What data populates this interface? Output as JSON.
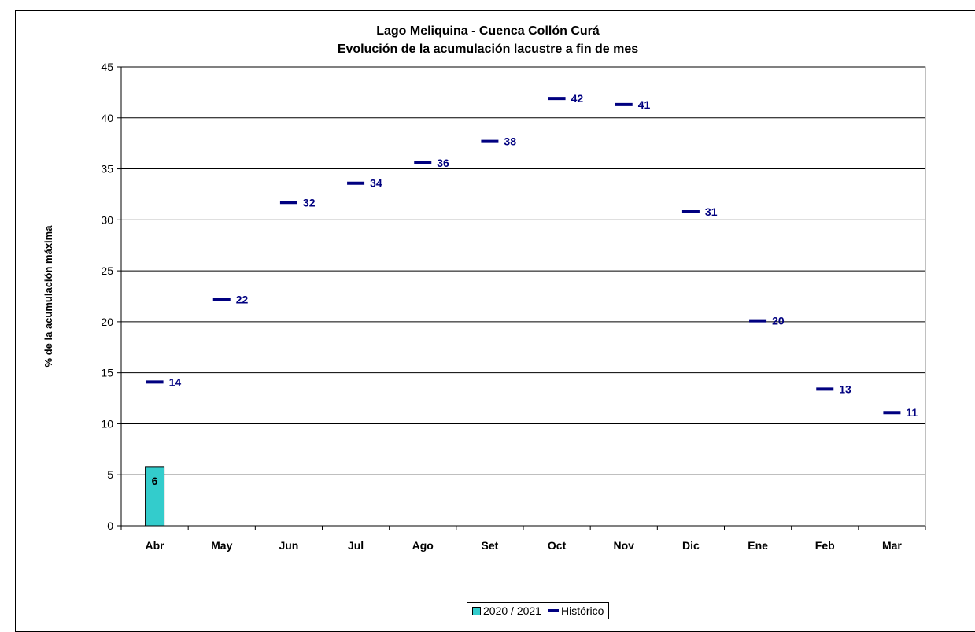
{
  "colors": {
    "bar": "#33CCCC",
    "historico": "#000080",
    "grid": "#000000"
  },
  "chart_data": {
    "type": "bar",
    "title": [
      "Lago Meliquina - Cuenca Collón Curá",
      "Evolución de la acumulación lacustre a fin de mes"
    ],
    "ylabel": "% de la acumulación máxima",
    "ylim": [
      0,
      45
    ],
    "yticks": [
      0,
      5,
      10,
      15,
      20,
      25,
      30,
      35,
      40,
      45
    ],
    "grid": true,
    "categories": [
      "Abr",
      "May",
      "Jun",
      "Jul",
      "Ago",
      "Set",
      "Oct",
      "Nov",
      "Dic",
      "Ene",
      "Feb",
      "Mar"
    ],
    "series": [
      {
        "name": "2020 / 2021",
        "type": "bar",
        "values": [
          5.8,
          null,
          null,
          null,
          null,
          null,
          null,
          null,
          null,
          null,
          null,
          null
        ],
        "labels": [
          "6"
        ]
      },
      {
        "name": "Histórico",
        "type": "marker",
        "values": [
          14.1,
          22.2,
          31.7,
          33.6,
          35.6,
          37.7,
          41.9,
          41.3,
          30.8,
          20.1,
          13.4,
          11.1
        ],
        "labels": [
          "14",
          "22",
          "32",
          "34",
          "36",
          "38",
          "42",
          "41",
          "31",
          "20",
          "13",
          "11"
        ]
      }
    ],
    "legend": "bottom"
  },
  "legend": {
    "bar_label": "2020 / 2021",
    "line_label": "Histórico"
  }
}
